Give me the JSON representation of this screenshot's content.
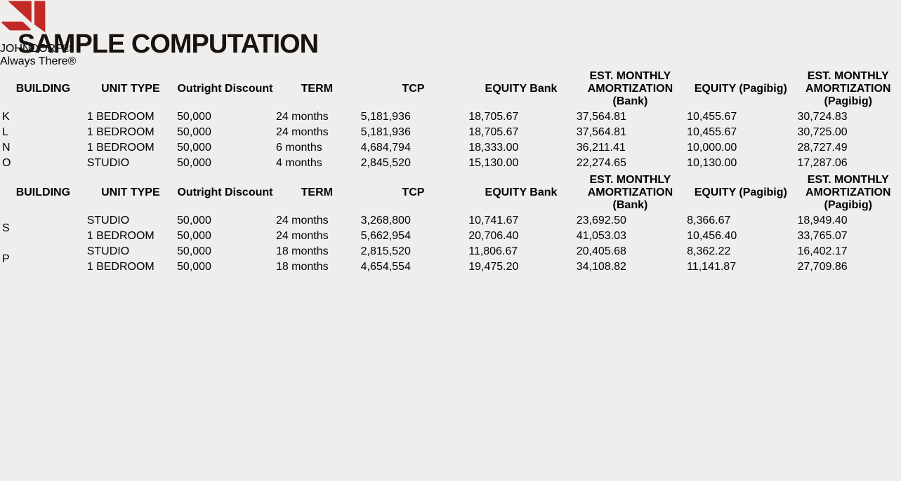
{
  "page": {
    "title": "SAMPLE COMPUTATION"
  },
  "logo": {
    "brand": "JOHNDORF",
    "registered_mark": "®",
    "tagline": "Always There®",
    "brand_color": "#c22a28"
  },
  "colors": {
    "header_red": "#a42b14",
    "underline_red": "#b8422a",
    "slide_background": "#efeeec",
    "cell_background": "#f7f6f5",
    "grid_line": "#a3a3a3"
  },
  "columns": [
    "BUILDING",
    "UNIT TYPE",
    "Outright\nDiscount",
    "TERM",
    "TCP",
    "EQUITY\nBank",
    "EST. MONTHLY\nAMORTIZATION\n(Bank)",
    "EQUITY\n(Pagibig)",
    "EST. MONTHLY\nAMORTIZATION\n(Pagibig)"
  ],
  "column_widths_pct": [
    9.4,
    10,
    11,
    9.4,
    12,
    12,
    12.3,
    12.3,
    11.6
  ],
  "table1": {
    "rows": [
      [
        "K",
        "1 BEDROOM",
        "50,000",
        "24 months",
        "5,181,936",
        "18,705.67",
        "37,564.81",
        "10,455.67",
        "30,724.83"
      ],
      [
        "L",
        "1 BEDROOM",
        "50,000",
        "24 months",
        "5,181,936",
        "18,705.67",
        "37,564.81",
        "10,455.67",
        "30,725.00"
      ],
      [
        "N",
        "1 BEDROOM",
        "50,000",
        "6 months",
        "4,684,794",
        "18,333.00",
        "36,211.41",
        "10,000.00",
        "28,727.49"
      ],
      [
        "O",
        "STUDIO",
        "50,000",
        "4 months",
        "2,845,520",
        "15,130.00",
        "22,274.65",
        "10,130.00",
        "17,287.06"
      ]
    ]
  },
  "table2": {
    "groups": [
      {
        "building": "S",
        "rows": [
          [
            "STUDIO",
            "50,000",
            "24 months",
            "3,268,800",
            "10,741.67",
            "23,692.50",
            "8,366.67",
            "18,949.40"
          ],
          [
            "1 BEDROOM",
            "50,000",
            "24 months",
            "5,662,954",
            "20,706.40",
            "41,053.03",
            "10,456.40",
            "33,765.07"
          ]
        ]
      },
      {
        "building": "P",
        "rows": [
          [
            "STUDIO",
            "50,000",
            "18 months",
            "2,815,520",
            "11,806.67",
            "20,405.68",
            "8,362.22",
            "16,402.17"
          ],
          [
            "1 BEDROOM",
            "50,000",
            "18 months",
            "4,654,554",
            "19,475.20",
            "34,108.82",
            "11,141.87",
            "27,709.86"
          ]
        ]
      }
    ]
  }
}
